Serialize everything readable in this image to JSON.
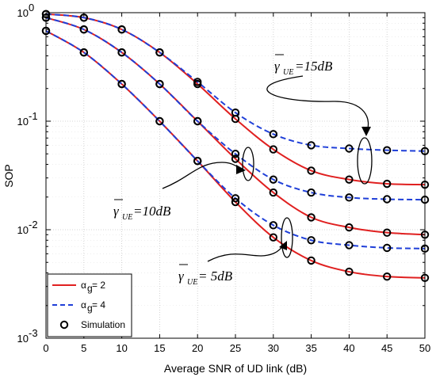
{
  "chart_data": {
    "type": "line",
    "ylabel": "SOP",
    "xlabel": "Average SNR of UD link (dB)",
    "xlim": [
      0,
      50
    ],
    "ylim": [
      0.001,
      1
    ],
    "yscale": "log",
    "grid": true,
    "legend_position": "bottom-left",
    "x": [
      0,
      5,
      10,
      15,
      20,
      25,
      30,
      35,
      40,
      45,
      50
    ],
    "x_ticks": [
      "0",
      "5",
      "10",
      "15",
      "20",
      "25",
      "30",
      "35",
      "40",
      "45",
      "50"
    ],
    "y_ticks": [
      {
        "value": 0.001,
        "base": "10",
        "exp": "-3"
      },
      {
        "value": 0.01,
        "base": "10",
        "exp": "-2"
      },
      {
        "value": 0.1,
        "base": "10",
        "exp": "-1"
      },
      {
        "value": 1,
        "base": "10",
        "exp": "0"
      }
    ],
    "series": [
      {
        "name": "αg = 2, γUE = 5dB",
        "style": "solid",
        "color": "#e02020",
        "values": [
          0.68,
          0.43,
          0.22,
          0.1,
          0.043,
          0.018,
          0.0085,
          0.0052,
          0.0041,
          0.0037,
          0.0036
        ]
      },
      {
        "name": "αg = 4, γUE = 5dB",
        "style": "dashed",
        "color": "#1f3fd8",
        "values": [
          0.68,
          0.43,
          0.22,
          0.1,
          0.043,
          0.0195,
          0.011,
          0.008,
          0.0072,
          0.0068,
          0.0067
        ]
      },
      {
        "name": "αg = 2, γUE = 10dB",
        "style": "solid",
        "color": "#e02020",
        "values": [
          0.9,
          0.7,
          0.43,
          0.22,
          0.1,
          0.045,
          0.022,
          0.013,
          0.0105,
          0.0094,
          0.009
        ]
      },
      {
        "name": "αg = 4, γUE = 10dB",
        "style": "dashed",
        "color": "#1f3fd8",
        "values": [
          0.9,
          0.7,
          0.43,
          0.22,
          0.1,
          0.05,
          0.029,
          0.022,
          0.0198,
          0.0191,
          0.0189
        ]
      },
      {
        "name": "αg = 2, γUE = 15dB",
        "style": "solid",
        "color": "#e02020",
        "values": [
          0.97,
          0.9,
          0.7,
          0.43,
          0.22,
          0.105,
          0.055,
          0.035,
          0.029,
          0.0265,
          0.026
        ]
      },
      {
        "name": "αg = 4, γUE = 15dB",
        "style": "dashed",
        "color": "#1f3fd8",
        "values": [
          0.97,
          0.9,
          0.7,
          0.43,
          0.23,
          0.12,
          0.076,
          0.06,
          0.056,
          0.054,
          0.053
        ]
      }
    ],
    "legend": [
      {
        "label": "α",
        "sub": "g",
        "rest": " = 2",
        "style": "solid",
        "color": "#e02020"
      },
      {
        "label": "α",
        "sub": "g",
        "rest": " = 4",
        "style": "dashed",
        "color": "#1f3fd8"
      },
      {
        "label": "Simulation",
        "sub": "",
        "rest": "",
        "style": "marker",
        "color": "#000000"
      }
    ],
    "annotations": [
      {
        "sym": "γ",
        "sub": "UE",
        "text": " =15dB"
      },
      {
        "sym": "γ",
        "sub": "UE",
        "text": " =10dB"
      },
      {
        "sym": "γ",
        "sub": "UE",
        "text": " = 5dB"
      }
    ]
  }
}
